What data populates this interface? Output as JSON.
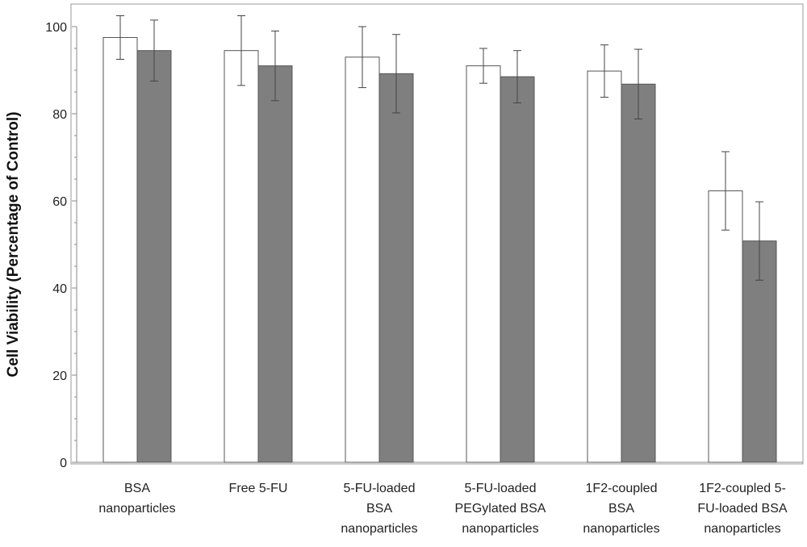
{
  "chart_data": {
    "type": "bar",
    "title": "",
    "xlabel": "",
    "ylabel": "Cell Viability (Percentage of Control)",
    "ylim": [
      0,
      100
    ],
    "yticks": [
      "0",
      "20",
      "40",
      "60",
      "80",
      "100"
    ],
    "grid": false,
    "categories": [
      [
        "BSA",
        "nanoparticles"
      ],
      [
        "Free 5-FU"
      ],
      [
        "5-FU-loaded",
        "BSA",
        "nanoparticles"
      ],
      [
        "5-FU-loaded",
        "PEGylated BSA",
        "nanoparticles"
      ],
      [
        "1F2-coupled",
        "BSA",
        "nanoparticles"
      ],
      [
        "1F2-coupled 5-",
        "FU-loaded BSA",
        "nanoparticles"
      ]
    ],
    "series": [
      {
        "fill": "#ffffff",
        "values": [
          97.5,
          94.5,
          93,
          91,
          89.8,
          62.3
        ],
        "errors": [
          5,
          8,
          7,
          4,
          6,
          9
        ]
      },
      {
        "fill": "#7f7f7f",
        "values": [
          94.5,
          91,
          89.2,
          88.5,
          86.8,
          50.8
        ],
        "errors": [
          7,
          8,
          9,
          6,
          8,
          9
        ]
      }
    ]
  }
}
